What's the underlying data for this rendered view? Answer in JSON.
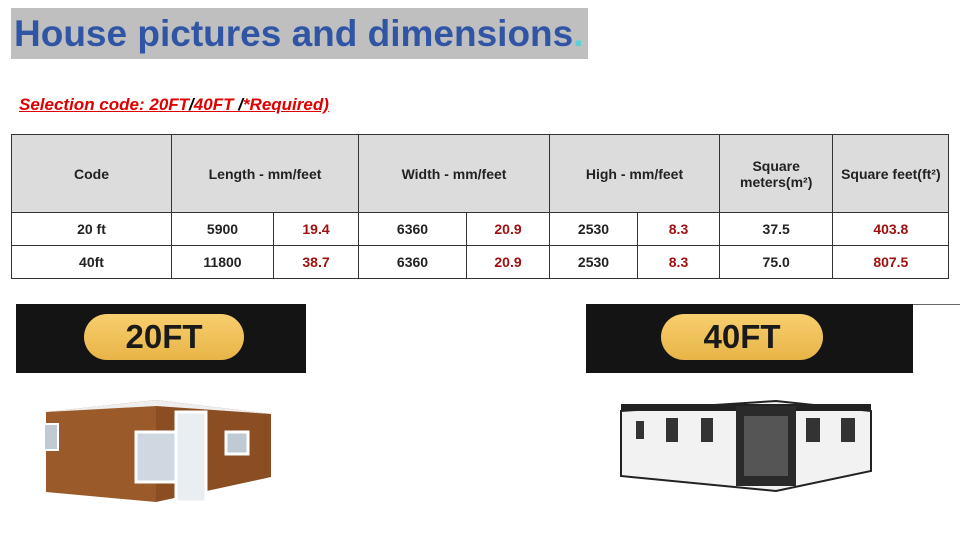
{
  "title": "House pictures and dimensions",
  "title_dot": ".",
  "selection": {
    "prefix": "Selection code: 20FT",
    "sep1": "/",
    "code2": "40FT ",
    "sep2": "/",
    "suffix": "*Required)"
  },
  "table": {
    "headers": [
      "Code",
      "Length - mm/feet",
      "Width - mm/feet",
      "High - mm/feet",
      "Square meters(m²)",
      "Square feet(ft²)"
    ],
    "rows": [
      [
        "20 ft",
        "5900",
        "19.4",
        "6360",
        "20.9",
        "2530",
        "8.3",
        "37.5",
        "403.8"
      ],
      [
        "40ft",
        "11800",
        "38.7",
        "6360",
        "20.9",
        "2530",
        "8.3",
        "75.0",
        "807.5"
      ]
    ]
  },
  "banners": [
    "20FT",
    "40FT"
  ],
  "colors": {
    "title": "#2f55a4",
    "title_bg": "#bfbfbf",
    "required": "#e00000",
    "feet_values": "#a01010",
    "pill": "#f0c25a"
  }
}
